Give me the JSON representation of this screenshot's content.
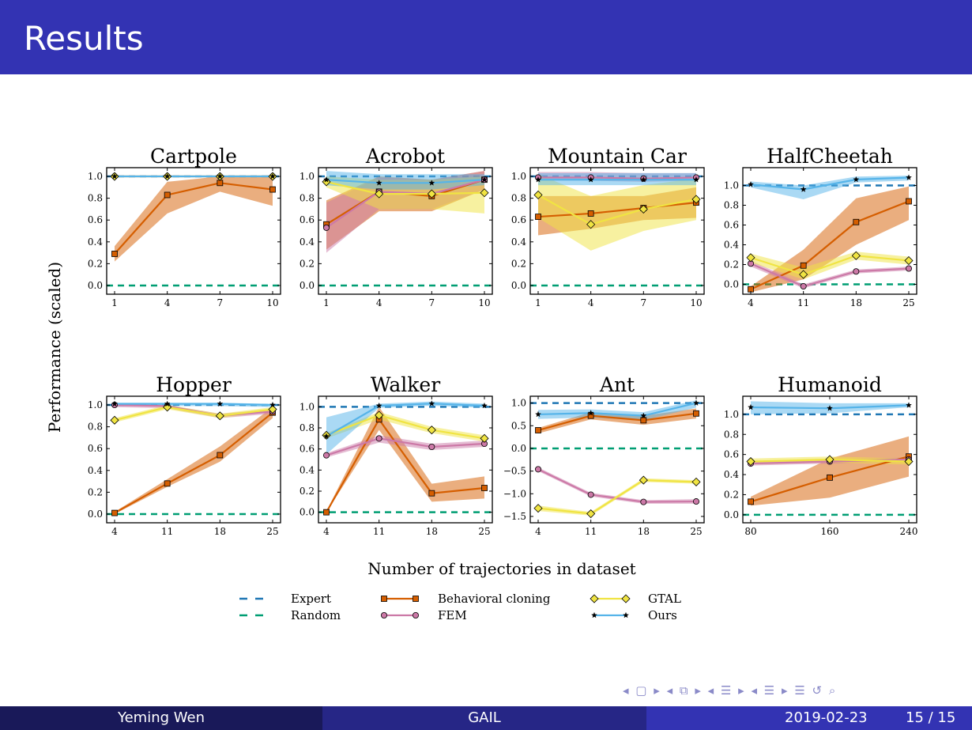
{
  "slide": {
    "title": "Results",
    "footer": {
      "author": "Yeming Wen",
      "title": "GAIL",
      "date": "2019-02-23",
      "page": "15 / 15"
    },
    "nav_icons": [
      "arrow-left",
      "frame",
      "arrow-right",
      "subsection",
      "section",
      "align",
      "search"
    ],
    "accent_color": "#3333b3"
  },
  "chart_data": {
    "type": "line",
    "ylabel": "Performance (scaled)",
    "xlabel": "Number of trajectories in dataset",
    "legend": [
      {
        "key": "expert",
        "label": "Expert",
        "color": "#1f77b4",
        "style": "dashed"
      },
      {
        "key": "random",
        "label": "Random",
        "color": "#009e73",
        "style": "dashed"
      },
      {
        "key": "bc",
        "label": "Behavioral cloning",
        "color": "#d55e00",
        "marker": "square"
      },
      {
        "key": "fem",
        "label": "FEM",
        "color": "#cc79a7",
        "marker": "circle"
      },
      {
        "key": "gtal",
        "label": "GTAL",
        "color": "#f0e442",
        "marker": "diamond"
      },
      {
        "key": "ours",
        "label": "Ours",
        "color": "#56b4e9",
        "marker": "star"
      }
    ],
    "panels": [
      {
        "title": "Cartpole",
        "x": [
          1,
          4,
          7,
          10
        ],
        "xticks": [
          1,
          4,
          7,
          10
        ],
        "ylim": [
          -0.08,
          1.08
        ],
        "yticks": [
          "0.0",
          "0.2",
          "0.4",
          "0.6",
          "0.8",
          "1.0"
        ],
        "expert": 1.0,
        "random": 0.0,
        "series": {
          "bc": [
            0.29,
            0.83,
            0.94,
            0.88
          ],
          "bc_band": [
            [
              0.22,
              0.36
            ],
            [
              0.66,
              0.95
            ],
            [
              0.86,
              1.0
            ],
            [
              0.73,
              1.0
            ]
          ],
          "ours": [
            1.0,
            1.0,
            1.0,
            1.0
          ],
          "fem": [
            1.0,
            1.0,
            1.0,
            1.0
          ],
          "gtal": [
            1.0,
            1.0,
            1.0,
            1.0
          ]
        }
      },
      {
        "title": "Acrobot",
        "x": [
          1,
          4,
          7,
          10
        ],
        "xticks": [
          1,
          4,
          7,
          10
        ],
        "ylim": [
          -0.08,
          1.08
        ],
        "yticks": [
          "0.0",
          "0.2",
          "0.4",
          "0.6",
          "0.8",
          "1.0"
        ],
        "expert": 1.0,
        "random": 0.0,
        "series": {
          "bc": [
            0.56,
            0.86,
            0.82,
            0.97
          ],
          "bc_band": [
            [
              0.33,
              0.78
            ],
            [
              0.68,
              1.0
            ],
            [
              0.68,
              0.97
            ],
            [
              0.88,
              1.05
            ]
          ],
          "fem": [
            0.53,
            0.86,
            0.84,
            0.97
          ],
          "fem_band": [
            [
              0.3,
              0.76
            ],
            [
              0.7,
              0.99
            ],
            [
              0.7,
              0.97
            ],
            [
              0.88,
              1.05
            ]
          ],
          "gtal": [
            0.95,
            0.84,
            0.84,
            0.85
          ],
          "gtal_band": [
            [
              0.9,
              1.0
            ],
            [
              0.7,
              0.97
            ],
            [
              0.7,
              0.97
            ],
            [
              0.66,
              1.0
            ]
          ],
          "ours": [
            0.97,
            0.94,
            0.94,
            0.97
          ],
          "ours_band": [
            [
              0.92,
              1.05
            ],
            [
              0.88,
              1.02
            ],
            [
              0.88,
              1.02
            ],
            [
              0.92,
              1.02
            ]
          ]
        }
      },
      {
        "title": "Mountain Car",
        "x": [
          1,
          4,
          7,
          10
        ],
        "xticks": [
          1,
          4,
          7,
          10
        ],
        "ylim": [
          -0.08,
          1.08
        ],
        "yticks": [
          "0.0",
          "0.2",
          "0.4",
          "0.6",
          "0.8",
          "1.0"
        ],
        "expert": 1.0,
        "random": 0.0,
        "series": {
          "bc": [
            0.63,
            0.66,
            0.71,
            0.76
          ],
          "bc_band": [
            [
              0.46,
              0.82
            ],
            [
              0.52,
              0.82
            ],
            [
              0.6,
              0.82
            ],
            [
              0.62,
              0.9
            ]
          ],
          "gtal": [
            0.83,
            0.56,
            0.7,
            0.79
          ],
          "gtal_band": [
            [
              0.62,
              1.02
            ],
            [
              0.32,
              0.82
            ],
            [
              0.5,
              0.92
            ],
            [
              0.6,
              0.98
            ]
          ],
          "fem": [
            0.99,
            0.99,
            0.98,
            0.99
          ],
          "fem_band": [
            [
              0.96,
              1.04
            ],
            [
              0.96,
              1.04
            ],
            [
              0.95,
              1.03
            ],
            [
              0.96,
              1.03
            ]
          ],
          "ours": [
            0.97,
            0.97,
            0.97,
            0.97
          ],
          "ours_band": [
            [
              0.92,
              1.03
            ],
            [
              0.92,
              1.03
            ],
            [
              0.92,
              1.03
            ],
            [
              0.92,
              1.03
            ]
          ]
        }
      },
      {
        "title": "HalfCheetah",
        "x": [
          4,
          11,
          18,
          25
        ],
        "xticks": [
          4,
          11,
          18,
          25
        ],
        "ylim": [
          -0.1,
          1.18
        ],
        "yticks": [
          "0.0",
          "0.2",
          "0.4",
          "0.6",
          "0.8",
          "1.0"
        ],
        "expert": 1.0,
        "random": 0.0,
        "series": {
          "bc": [
            -0.05,
            0.19,
            0.63,
            0.84
          ],
          "bc_band": [
            [
              -0.08,
              -0.02
            ],
            [
              0.05,
              0.35
            ],
            [
              0.4,
              0.87
            ],
            [
              0.65,
              0.99
            ]
          ],
          "gtal": [
            0.27,
            0.1,
            0.29,
            0.24
          ],
          "gtal_band": [
            [
              0.22,
              0.31
            ],
            [
              0.05,
              0.17
            ],
            [
              0.25,
              0.33
            ],
            [
              0.2,
              0.28
            ]
          ],
          "fem": [
            0.21,
            -0.02,
            0.13,
            0.16
          ],
          "fem_band": [
            [
              0.18,
              0.24
            ],
            [
              -0.04,
              0.0
            ],
            [
              0.11,
              0.15
            ],
            [
              0.14,
              0.18
            ]
          ],
          "ours": [
            1.01,
            0.96,
            1.06,
            1.08
          ],
          "ours_band": [
            [
              0.98,
              1.04
            ],
            [
              0.86,
              1.0
            ],
            [
              1.03,
              1.09
            ],
            [
              1.05,
              1.1
            ]
          ]
        }
      },
      {
        "title": "Hopper",
        "x": [
          4,
          11,
          18,
          25
        ],
        "xticks": [
          4,
          11,
          18,
          25
        ],
        "ylim": [
          -0.08,
          1.08
        ],
        "yticks": [
          "0.0",
          "0.2",
          "0.4",
          "0.6",
          "0.8",
          "1.0"
        ],
        "expert": 1.0,
        "random": 0.0,
        "series": {
          "bc": [
            0.01,
            0.28,
            0.54,
            0.93
          ],
          "bc_band": [
            [
              0.0,
              0.02
            ],
            [
              0.25,
              0.32
            ],
            [
              0.48,
              0.62
            ],
            [
              0.88,
              0.98
            ]
          ],
          "gtal": [
            0.86,
            0.98,
            0.9,
            0.96
          ],
          "gtal_band": [
            [
              0.84,
              0.88
            ],
            [
              0.96,
              1.0
            ],
            [
              0.88,
              0.92
            ],
            [
              0.94,
              0.98
            ]
          ],
          "fem": [
            1.0,
            0.99,
            0.9,
            0.94
          ],
          "fem_band": [
            [
              0.98,
              1.01
            ],
            [
              0.97,
              1.0
            ],
            [
              0.88,
              0.92
            ],
            [
              0.92,
              0.96
            ]
          ],
          "ours": [
            1.01,
            1.01,
            1.01,
            1.0
          ],
          "ours_band": [
            [
              0.99,
              1.02
            ],
            [
              0.99,
              1.02
            ],
            [
              0.99,
              1.02
            ],
            [
              0.98,
              1.01
            ]
          ]
        }
      },
      {
        "title": "Walker",
        "x": [
          4,
          11,
          18,
          25
        ],
        "xticks": [
          4,
          11,
          18,
          25
        ],
        "ylim": [
          -0.1,
          1.1
        ],
        "yticks": [
          "0.0",
          "0.2",
          "0.4",
          "0.6",
          "0.8",
          "1.0"
        ],
        "expert": 1.0,
        "random": 0.0,
        "series": {
          "bc": [
            0.0,
            0.88,
            0.18,
            0.23
          ],
          "bc_band": [
            [
              0.0,
              0.01
            ],
            [
              0.78,
              1.0
            ],
            [
              0.1,
              0.27
            ],
            [
              0.13,
              0.34
            ]
          ],
          "fem": [
            0.54,
            0.7,
            0.62,
            0.65
          ],
          "fem_band": [
            [
              0.52,
              0.56
            ],
            [
              0.66,
              0.73
            ],
            [
              0.59,
              0.65
            ],
            [
              0.62,
              0.68
            ]
          ],
          "gtal": [
            0.73,
            0.92,
            0.78,
            0.7
          ],
          "gtal_band": [
            [
              0.7,
              0.75
            ],
            [
              0.88,
              0.95
            ],
            [
              0.75,
              0.81
            ],
            [
              0.67,
              0.73
            ]
          ],
          "ours": [
            0.72,
            1.01,
            1.03,
            1.01
          ],
          "ours_band": [
            [
              0.55,
              0.9
            ],
            [
              0.99,
              1.03
            ],
            [
              1.01,
              1.05
            ],
            [
              0.99,
              1.03
            ]
          ]
        }
      },
      {
        "title": "Ant",
        "x": [
          4,
          11,
          18,
          25
        ],
        "xticks": [
          4,
          11,
          18,
          25
        ],
        "ylim": [
          -1.64,
          1.15
        ],
        "yticks": [
          "−1.5",
          "−1.0",
          "−0.5",
          "0.0",
          "0.5",
          "1.0"
        ],
        "ytick_values": [
          -1.5,
          -1.0,
          -0.5,
          0.0,
          0.5,
          1.0
        ],
        "expert": 1.0,
        "random": 0.0,
        "series": {
          "bc": [
            0.4,
            0.72,
            0.62,
            0.77
          ],
          "bc_band": [
            [
              0.33,
              0.45
            ],
            [
              0.64,
              0.8
            ],
            [
              0.52,
              0.72
            ],
            [
              0.66,
              0.88
            ]
          ],
          "ours": [
            0.75,
            0.78,
            0.72,
            1.0
          ],
          "ours_band": [
            [
              0.65,
              0.85
            ],
            [
              0.68,
              0.86
            ],
            [
              0.62,
              0.8
            ],
            [
              0.9,
              1.06
            ]
          ],
          "fem": [
            -0.46,
            -1.02,
            -1.18,
            -1.17
          ],
          "fem_band": [
            [
              -0.5,
              -0.42
            ],
            [
              -1.06,
              -0.98
            ],
            [
              -1.22,
              -1.14
            ],
            [
              -1.22,
              -1.12
            ]
          ],
          "gtal": [
            -1.32,
            -1.44,
            -0.7,
            -0.74
          ],
          "gtal_band": [
            [
              -1.38,
              -1.26
            ],
            [
              -1.48,
              -1.4
            ],
            [
              -0.74,
              -0.66
            ],
            [
              -0.78,
              -0.7
            ]
          ]
        }
      },
      {
        "title": "Humanoid",
        "x": [
          80,
          160,
          240
        ],
        "xticks": [
          80,
          160,
          240
        ],
        "ylim": [
          -0.08,
          1.18
        ],
        "yticks": [
          "0.0",
          "0.2",
          "0.4",
          "0.6",
          "0.8",
          "1.0"
        ],
        "expert": 1.0,
        "random": 0.0,
        "series": {
          "bc": [
            0.13,
            0.37,
            0.58
          ],
          "bc_band": [
            [
              0.09,
              0.18
            ],
            [
              0.17,
              0.56
            ],
            [
              0.38,
              0.78
            ]
          ],
          "gtal": [
            0.53,
            0.55,
            0.53
          ],
          "gtal_band": [
            [
              0.5,
              0.56
            ],
            [
              0.52,
              0.58
            ],
            [
              0.5,
              0.56
            ]
          ],
          "fem": [
            0.51,
            0.53,
            0.55
          ],
          "fem_band": [
            [
              0.49,
              0.53
            ],
            [
              0.51,
              0.55
            ],
            [
              0.53,
              0.57
            ]
          ],
          "ours": [
            1.07,
            1.06,
            1.09
          ],
          "ours_band": [
            [
              1.0,
              1.13
            ],
            [
              1.01,
              1.11
            ],
            [
              1.07,
              1.11
            ]
          ]
        }
      }
    ]
  }
}
